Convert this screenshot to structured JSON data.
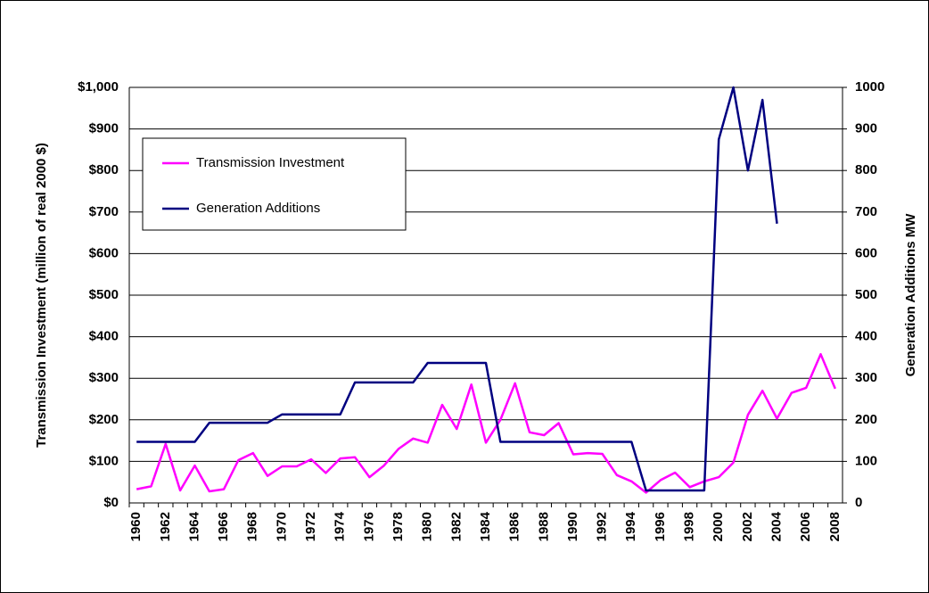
{
  "chart_data": {
    "type": "line",
    "y_label": "Transmission Investment (million of real 2000 $)",
    "y2_label": "Generation Additions MW",
    "categories": [
      "1960",
      null,
      "1962",
      null,
      "1964",
      null,
      "1966",
      null,
      "1968",
      null,
      "1970",
      null,
      "1972",
      null,
      "1974",
      null,
      "1976",
      null,
      "1978",
      null,
      "1980",
      null,
      "1982",
      null,
      "1984",
      null,
      "1986",
      null,
      "1988",
      null,
      "1990",
      null,
      "1992",
      null,
      "1994",
      null,
      "1996",
      null,
      "1998",
      null,
      "2000",
      null,
      "2002",
      null,
      "2004",
      null,
      "2006",
      null,
      "2008"
    ],
    "series": [
      {
        "name": "Transmission Investment",
        "color": "#ff00ff",
        "values": [
          33,
          40,
          142,
          30,
          90,
          28,
          33,
          103,
          120,
          65,
          88,
          88,
          105,
          72,
          107,
          110,
          62,
          90,
          130,
          155,
          145,
          236,
          178,
          285,
          145,
          200,
          288,
          170,
          163,
          192,
          117,
          120,
          118,
          67,
          52,
          25,
          55,
          73,
          38,
          52,
          62,
          97,
          212,
          270,
          203,
          265,
          277,
          358,
          275
        ]
      },
      {
        "name": "Generation Additions",
        "color": "#000080",
        "axis": "y2",
        "values": [
          147,
          147,
          147,
          147,
          147,
          193,
          193,
          193,
          193,
          193,
          213,
          213,
          213,
          213,
          213,
          290,
          290,
          290,
          290,
          290,
          337,
          337,
          337,
          337,
          337,
          147,
          147,
          147,
          147,
          147,
          147,
          147,
          147,
          147,
          147,
          30,
          30,
          30,
          30,
          30,
          875,
          1000,
          800,
          970,
          672,
          null,
          null,
          null,
          null
        ]
      }
    ],
    "ylim": [
      0,
      1000
    ],
    "yticks": [
      {
        "value": 0,
        "label": "$0"
      },
      {
        "value": 100,
        "label": "$100"
      },
      {
        "value": 200,
        "label": "$200"
      },
      {
        "value": 300,
        "label": "$300"
      },
      {
        "value": 400,
        "label": "$400"
      },
      {
        "value": 500,
        "label": "$500"
      },
      {
        "value": 600,
        "label": "$600"
      },
      {
        "value": 700,
        "label": "$700"
      },
      {
        "value": 800,
        "label": "$800"
      },
      {
        "value": 900,
        "label": "$900"
      },
      {
        "value": 1000,
        "label": "$1,000"
      }
    ],
    "y2lim": [
      0,
      1000
    ],
    "y2ticks": [
      0,
      100,
      200,
      300,
      400,
      500,
      600,
      700,
      800,
      900,
      1000
    ],
    "grid": true,
    "legend": "upper left"
  }
}
